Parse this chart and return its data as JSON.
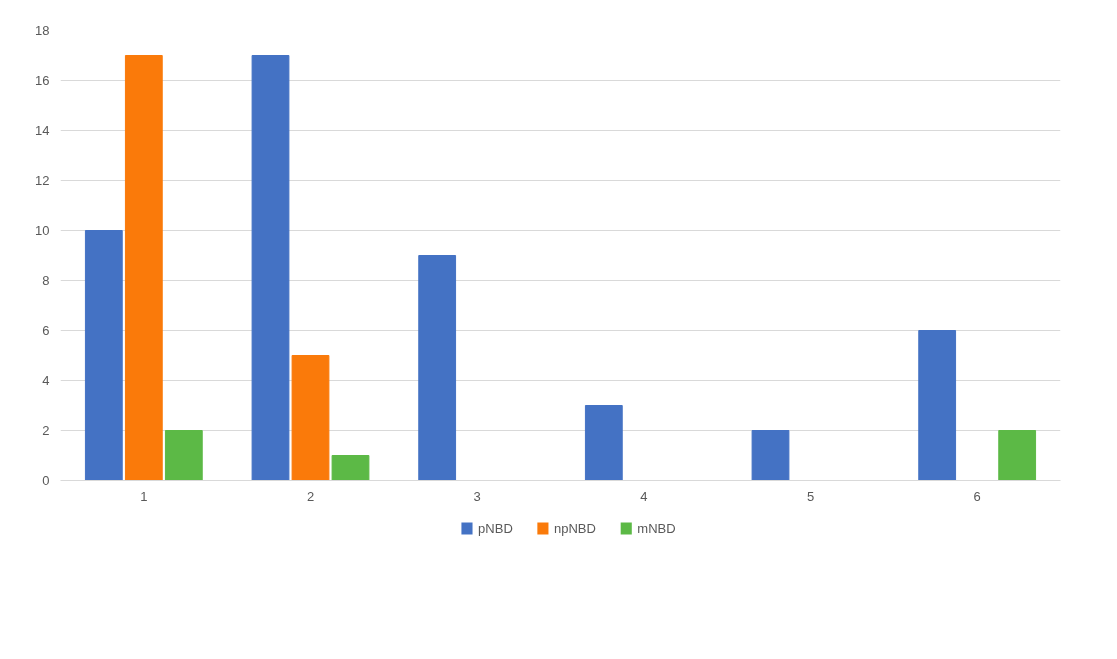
{
  "chart_data": {
    "type": "bar",
    "categories": [
      "1",
      "2",
      "3",
      "4",
      "5",
      "6"
    ],
    "series": [
      {
        "name": "pNBD",
        "color": "#4472c4",
        "values": [
          10,
          17,
          9,
          3,
          2,
          6
        ]
      },
      {
        "name": "npNBD",
        "color": "#fa7a0a",
        "values": [
          17,
          5,
          0,
          0,
          0,
          0
        ]
      },
      {
        "name": "mNBD",
        "color": "#5cb946",
        "values": [
          2,
          1,
          0,
          0,
          0,
          2
        ]
      }
    ],
    "ylim": [
      0,
      18
    ],
    "yticks": [
      0,
      2,
      4,
      6,
      8,
      10,
      12,
      14,
      16,
      18
    ],
    "grid": "y",
    "legend": "bottom"
  }
}
